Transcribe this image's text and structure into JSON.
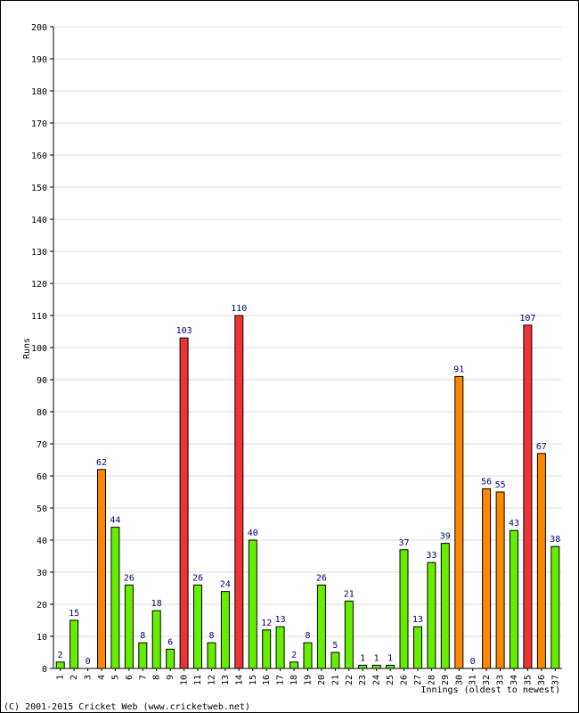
{
  "chart_data": {
    "type": "bar",
    "xlabel": "Innings (oldest to newest)",
    "ylabel": "Runs",
    "ylim": [
      0,
      200
    ],
    "yticks": [
      0,
      10,
      20,
      30,
      40,
      50,
      60,
      70,
      80,
      90,
      100,
      110,
      120,
      130,
      140,
      150,
      160,
      170,
      180,
      190,
      200
    ],
    "grid": true,
    "categories": [
      "1",
      "2",
      "3",
      "4",
      "5",
      "6",
      "7",
      "8",
      "9",
      "10",
      "11",
      "12",
      "13",
      "14",
      "15",
      "16",
      "17",
      "18",
      "19",
      "20",
      "21",
      "22",
      "23",
      "24",
      "25",
      "26",
      "27",
      "28",
      "29",
      "30",
      "31",
      "32",
      "33",
      "34",
      "35",
      "36",
      "37"
    ],
    "values": [
      2,
      15,
      0,
      62,
      44,
      26,
      8,
      18,
      6,
      103,
      26,
      8,
      24,
      110,
      40,
      12,
      13,
      2,
      8,
      26,
      5,
      21,
      1,
      1,
      1,
      37,
      13,
      33,
      39,
      91,
      0,
      56,
      55,
      43,
      107,
      67,
      38
    ],
    "value_labels": [
      "2",
      "15",
      "0",
      "62",
      "44",
      "26",
      "8",
      "18",
      "6",
      "103",
      "26",
      "8",
      "24",
      "110",
      "40",
      "12",
      "13",
      "2",
      "8",
      "26",
      "5",
      "21",
      "1",
      "1",
      "1",
      "37",
      "13",
      "33",
      "39",
      "91",
      "0",
      "56",
      "55",
      "43",
      "107",
      "67",
      "38"
    ],
    "color_rule": {
      "under_50": "#66ee00",
      "50_to_99": "#ff8800",
      "100_plus": "#ee3333"
    }
  },
  "footer": "(C) 2001-2015 Cricket Web (www.cricketweb.net)"
}
